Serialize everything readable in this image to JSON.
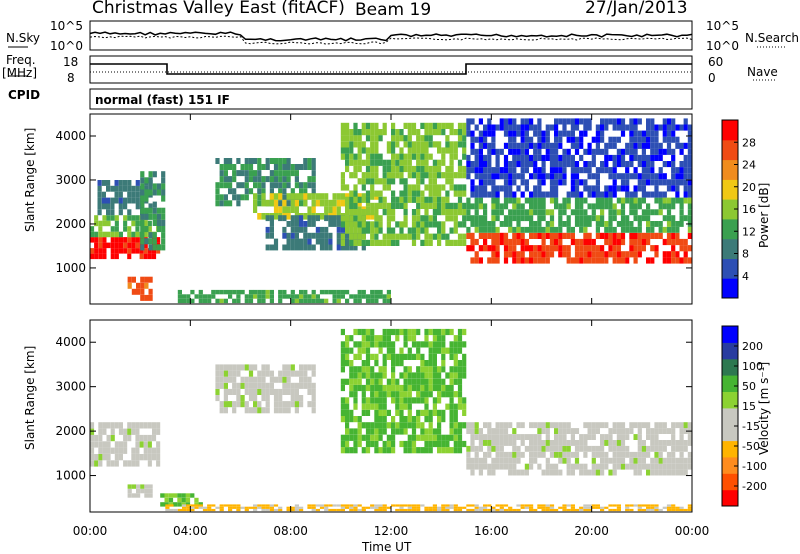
{
  "header": {
    "title": "Christmas Valley East (fitACF)",
    "beam": "Beam 19",
    "date": "27/Jan/2013"
  },
  "strip_labels": {
    "nsky": "N.Sky",
    "nsky_hi": "10^5",
    "nsky_lo": "10^0",
    "nsearch": "N.Search",
    "nsearch_hi": "10^5",
    "nsearch_lo": "10^0",
    "freq_line1": "Freq.",
    "freq_line2": "[MHz]",
    "freq_hi": "18",
    "freq_lo": "8",
    "nave": "Nave",
    "nave_hi": "60",
    "nave_lo": "0",
    "cpid": "CPID",
    "cpid_value": "normal (fast) 151 IF"
  },
  "colors": {
    "power": [
      "#0000ff",
      "#2d4fb4",
      "#3c7a78",
      "#3aa050",
      "#8cc832",
      "#f0c814",
      "#f08c1e",
      "#f04b14",
      "#ff0000"
    ],
    "velocity": [
      "#ff0000",
      "#ff5000",
      "#ff8c1e",
      "#ffb400",
      "#c8c8c0",
      "#c8c8c0",
      "#8cd232",
      "#46b432",
      "#2d7850",
      "#283ca0",
      "#0000ff"
    ]
  },
  "chart_data": [
    {
      "type": "heatmap",
      "panel": "power",
      "xlabel": "",
      "ylabel": "Slant Range [km]",
      "x_range": [
        "00:00",
        "00:00"
      ],
      "xticks": [
        "00:00",
        "04:00",
        "08:00",
        "12:00",
        "16:00",
        "20:00",
        "00:00"
      ],
      "ylim": [
        180,
        4500
      ],
      "yticks": [
        1000,
        2000,
        3000,
        4000
      ],
      "colorbar_label": "Power [dB]",
      "colorbar_ticks": [
        "4",
        "8",
        "12",
        "16",
        "20",
        "24",
        "28"
      ],
      "colorbar_range": [
        0,
        30
      ],
      "regions": [
        {
          "x": [
            0.0,
            2.8
          ],
          "y": [
            1200,
            1700
          ],
          "value": 28
        },
        {
          "x": [
            0.0,
            2.8
          ],
          "y": [
            1700,
            2200
          ],
          "value": 14
        },
        {
          "x": [
            0.3,
            2.5
          ],
          "y": [
            2200,
            3000
          ],
          "value": 8
        },
        {
          "x": [
            2.0,
            3.0
          ],
          "y": [
            1400,
            3200
          ],
          "value": 10
        },
        {
          "x": [
            1.5,
            2.5
          ],
          "y": [
            250,
            800
          ],
          "value": 24
        },
        {
          "x": [
            5.0,
            9.0
          ],
          "y": [
            2400,
            3500
          ],
          "value": 10
        },
        {
          "x": [
            6.5,
            11.5
          ],
          "y": [
            2100,
            2700
          ],
          "value": 16
        },
        {
          "x": [
            7.0,
            11.0
          ],
          "y": [
            1400,
            2200
          ],
          "value": 8
        },
        {
          "x": [
            10.0,
            15.0
          ],
          "y": [
            1500,
            4300
          ],
          "value": 14
        },
        {
          "x": [
            15.0,
            24.0
          ],
          "y": [
            1100,
            1800
          ],
          "value": 26
        },
        {
          "x": [
            15.0,
            24.0
          ],
          "y": [
            1800,
            2600
          ],
          "value": 12
        },
        {
          "x": [
            15.0,
            24.0
          ],
          "y": [
            2600,
            4400
          ],
          "value": 4
        },
        {
          "x": [
            3.5,
            12.0
          ],
          "y": [
            200,
            500
          ],
          "value": 12
        }
      ]
    },
    {
      "type": "heatmap",
      "panel": "velocity",
      "xlabel": "Time UT",
      "ylabel": "Slant Range [km]",
      "x_range": [
        "00:00",
        "00:00"
      ],
      "xticks": [
        "00:00",
        "04:00",
        "08:00",
        "12:00",
        "16:00",
        "20:00",
        "00:00"
      ],
      "ylim": [
        180,
        4500
      ],
      "yticks": [
        1000,
        2000,
        3000,
        4000
      ],
      "colorbar_label": "Velocity [m s⁻¹]",
      "colorbar_ticks": [
        "200",
        "100",
        "50",
        "15",
        "-15",
        "-50",
        "-100",
        "-200"
      ],
      "colorbar_range": [
        -250,
        250
      ],
      "regions": [
        {
          "x": [
            0.0,
            2.8
          ],
          "y": [
            1200,
            2200
          ],
          "value": 0
        },
        {
          "x": [
            1.5,
            2.5
          ],
          "y": [
            500,
            800
          ],
          "value": 0
        },
        {
          "x": [
            2.8,
            4.5
          ],
          "y": [
            300,
            600
          ],
          "value": 70
        },
        {
          "x": [
            5.0,
            9.0
          ],
          "y": [
            2400,
            3500
          ],
          "value": 0
        },
        {
          "x": [
            10.0,
            15.0
          ],
          "y": [
            1500,
            4300
          ],
          "value": 80
        },
        {
          "x": [
            15.0,
            24.0
          ],
          "y": [
            1000,
            2200
          ],
          "value": 0
        },
        {
          "x": [
            3.0,
            24.0
          ],
          "y": [
            200,
            350
          ],
          "value": -80
        }
      ]
    }
  ]
}
